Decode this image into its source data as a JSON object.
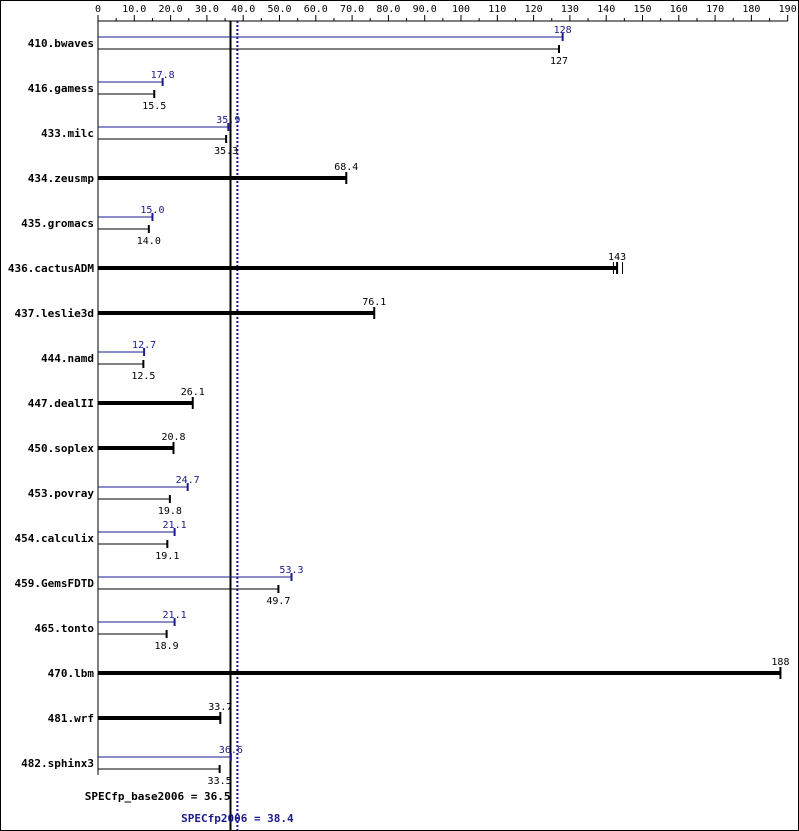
{
  "chart_data": {
    "type": "bar",
    "orientation": "horizontal",
    "xlim": [
      0,
      190
    ],
    "x_ticks": [
      "0",
      "10.0",
      "20.0",
      "30.0",
      "40.0",
      "50.0",
      "60.0",
      "70.0",
      "80.0",
      "90.0",
      "100",
      "110",
      "120",
      "130",
      "140",
      "150",
      "160",
      "170",
      "180",
      "190"
    ],
    "grid": false,
    "colors": {
      "peak": "#1a1a8c",
      "base": "#000000"
    },
    "benchmarks": [
      {
        "name": "410.bwaves",
        "peak": 128,
        "peak_label": "128",
        "base": 127,
        "base_label": "127"
      },
      {
        "name": "416.gamess",
        "peak": 17.8,
        "peak_label": "17.8",
        "base": 15.5,
        "base_label": "15.5"
      },
      {
        "name": "433.milc",
        "peak": 35.9,
        "peak_label": "35.9",
        "base": 35.3,
        "base_label": "35.3"
      },
      {
        "name": "434.zeusmp",
        "base": 68.4,
        "base_label": "68.4",
        "single": true
      },
      {
        "name": "435.gromacs",
        "peak": 15.0,
        "peak_label": "15.0",
        "base": 14.0,
        "base_label": "14.0"
      },
      {
        "name": "436.cactusADM",
        "base": 143,
        "base_label": "143",
        "single": true,
        "extra_ticks": [
          142,
          144.5
        ]
      },
      {
        "name": "437.leslie3d",
        "base": 76.1,
        "base_label": "76.1",
        "single": true
      },
      {
        "name": "444.namd",
        "peak": 12.7,
        "peak_label": "12.7",
        "base": 12.5,
        "base_label": "12.5"
      },
      {
        "name": "447.dealII",
        "base": 26.1,
        "base_label": "26.1",
        "single": true
      },
      {
        "name": "450.soplex",
        "base": 20.8,
        "base_label": "20.8",
        "single": true
      },
      {
        "name": "453.povray",
        "peak": 24.7,
        "peak_label": "24.7",
        "base": 19.8,
        "base_label": "19.8"
      },
      {
        "name": "454.calculix",
        "peak": 21.1,
        "peak_label": "21.1",
        "base": 19.1,
        "base_label": "19.1"
      },
      {
        "name": "459.GemsFDTD",
        "peak": 53.3,
        "peak_label": "53.3",
        "base": 49.7,
        "base_label": "49.7"
      },
      {
        "name": "465.tonto",
        "peak": 21.1,
        "peak_label": "21.1",
        "base": 18.9,
        "base_label": "18.9"
      },
      {
        "name": "470.lbm",
        "base": 188,
        "base_label": "188",
        "single": true
      },
      {
        "name": "481.wrf",
        "base": 33.7,
        "base_label": "33.7",
        "single": true
      },
      {
        "name": "482.sphinx3",
        "peak": 36.6,
        "peak_label": "36.6",
        "base": 33.5,
        "base_label": "33.5"
      }
    ],
    "reference_lines": [
      {
        "kind": "base",
        "label": "SPECfp_base2006 = 36.5",
        "value": 36.5
      },
      {
        "kind": "peak",
        "label": "SPECfp2006 = 38.4",
        "value": 38.4
      }
    ]
  }
}
